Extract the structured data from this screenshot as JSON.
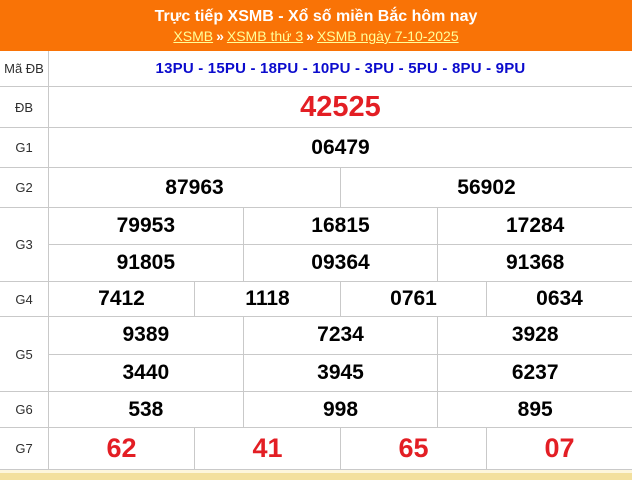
{
  "colors": {
    "header_bg": "#F97306",
    "title_text": "#FFFFFF",
    "link_text": "#FFFF99",
    "code_blue": "#0B0BCD",
    "prize_red": "#E31E24",
    "number_black": "#000000",
    "grid_line": "#C9C9C9",
    "bottom_bar": "#F3E09E"
  },
  "header": {
    "title": "Trực tiếp XSMB - Xổ số miền Bắc hôm nay",
    "separator": "»",
    "breadcrumb": [
      {
        "label": "XSMB"
      },
      {
        "label": "XSMB thứ 3"
      },
      {
        "label": "XSMB ngày 7-10-2025"
      }
    ]
  },
  "table": {
    "rows": [
      {
        "label": "Mã ĐB",
        "cells": [
          [
            "13PU - 15PU - 18PU - 10PU - 3PU - 5PU - 8PU - 9PU"
          ]
        ]
      },
      {
        "label": "ĐB",
        "cells": [
          [
            "42525"
          ]
        ]
      },
      {
        "label": "G1",
        "cells": [
          [
            "06479"
          ]
        ]
      },
      {
        "label": "G2",
        "cells": [
          [
            "87963",
            "56902"
          ]
        ]
      },
      {
        "label": "G3",
        "cells": [
          [
            "79953",
            "16815",
            "17284"
          ],
          [
            "91805",
            "09364",
            "91368"
          ]
        ]
      },
      {
        "label": "G4",
        "cells": [
          [
            "7412",
            "1118",
            "0761",
            "0634"
          ]
        ]
      },
      {
        "label": "G5",
        "cells": [
          [
            "9389",
            "7234",
            "3928"
          ],
          [
            "3440",
            "3945",
            "6237"
          ]
        ]
      },
      {
        "label": "G6",
        "cells": [
          [
            "538",
            "998",
            "895"
          ]
        ]
      },
      {
        "label": "G7",
        "cells": [
          [
            "62",
            "41",
            "65",
            "07"
          ]
        ]
      }
    ]
  }
}
